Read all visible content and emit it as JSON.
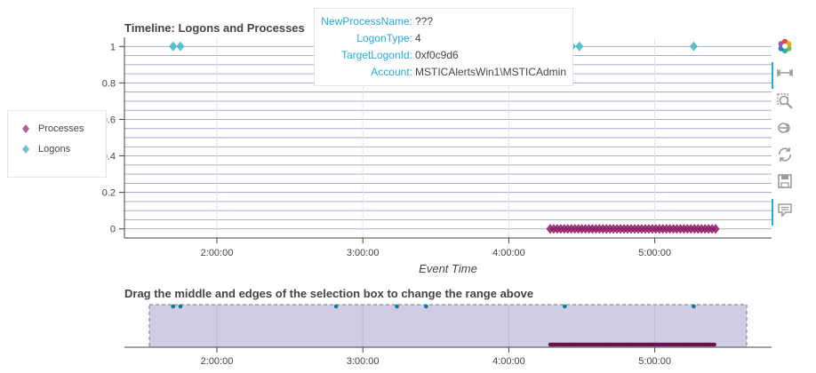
{
  "chart_data": [
    {
      "type": "scatter",
      "title": "Timeline: Logons and Processes",
      "xlabel": "Event Time",
      "ylabel": "",
      "x_ticks": [
        "2:00:00",
        "3:00:00",
        "4:00:00",
        "5:00:00"
      ],
      "x_range": [
        "1:22:00",
        "5:48:00"
      ],
      "y_ticks": [
        "0",
        "0.2",
        "0.4",
        "0.6",
        "0.8",
        "1"
      ],
      "ylim": [
        -0.05,
        1.05
      ],
      "legend": {
        "placement": "left",
        "entries": [
          "Processes",
          "Logons"
        ]
      },
      "series": [
        {
          "name": "Processes",
          "marker": "diamond",
          "color": "#8e1f6b",
          "y": 0,
          "x_start": "4:17:00",
          "x_end": "5:25:00",
          "count": 48
        },
        {
          "name": "Logons",
          "marker": "diamond",
          "color": "#3fb6c9",
          "y": 1,
          "x": [
            "1:42:00",
            "1:45:00",
            "2:49:00",
            "3:14:00",
            "3:26:00",
            "4:23:00",
            "4:26:00",
            "4:29:00",
            "5:16:00"
          ]
        }
      ]
    },
    {
      "type": "scatter",
      "title": "Drag the middle and edges of the selection box to change the range above",
      "x_ticks": [
        "2:00:00",
        "3:00:00",
        "4:00:00",
        "5:00:00"
      ],
      "x_range": [
        "1:22:00",
        "5:48:00"
      ],
      "selection_range": [
        "1:22:00",
        "5:48:00"
      ],
      "series": [
        {
          "name": "Logons",
          "color": "#0e7a9a",
          "x": [
            "1:42:00",
            "1:45:00",
            "2:49:00",
            "3:14:00",
            "3:26:00",
            "4:23:00",
            "5:16:00"
          ]
        },
        {
          "name": "Processes",
          "color": "#6b1050",
          "x_start": "4:17:00",
          "x_end": "5:25:00"
        }
      ]
    }
  ],
  "tooltip": {
    "rows": [
      {
        "key": "NewProcessName:",
        "value": "???"
      },
      {
        "key": "LogonType:",
        "value": "4"
      },
      {
        "key": "TargetLogonId:",
        "value": "0xf0c9d6"
      },
      {
        "key": "Account:",
        "value": "MSTICAlertsWin1\\MSTICAdmin"
      }
    ]
  },
  "toolbar": {
    "tools": [
      "bokeh-logo",
      "pan",
      "box-zoom",
      "wheel-zoom",
      "reset",
      "save",
      "hover"
    ]
  },
  "colors": {
    "accent": "#26aae1",
    "processes": "#8e1f6b",
    "logons": "#3fb6c9",
    "range_fill": "#d0cce5"
  }
}
